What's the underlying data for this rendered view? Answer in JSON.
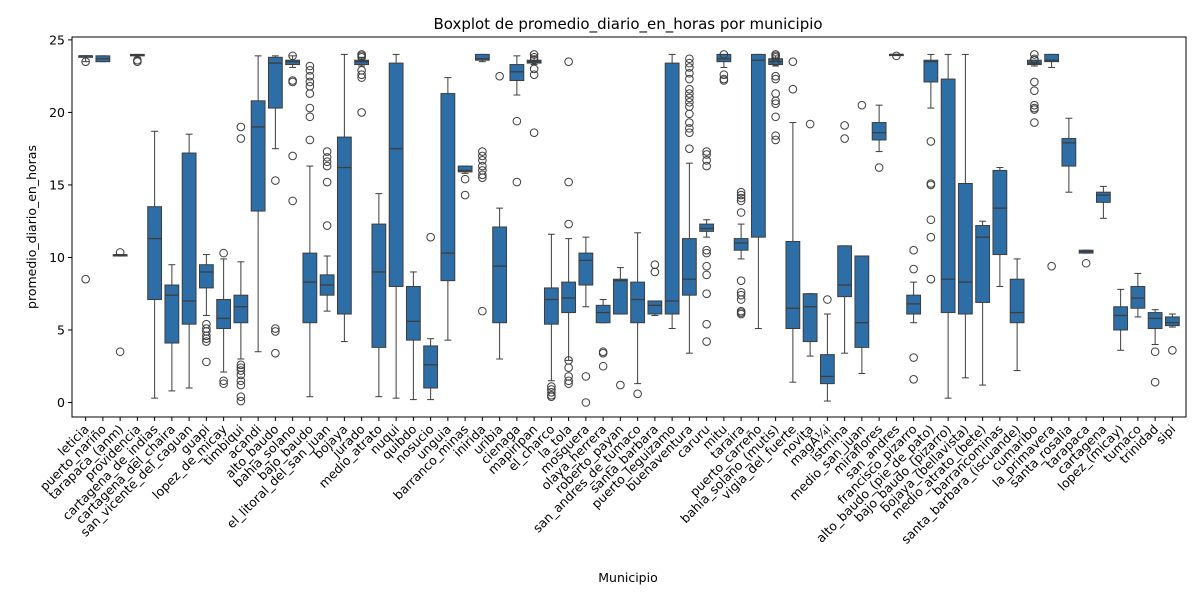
{
  "chart_data": {
    "type": "boxplot",
    "title": "Boxplot de promedio_diario_en_horas por municipio",
    "xlabel": "Municipio",
    "ylabel": "promedio_diario_en_horas",
    "ylim": [
      -1,
      25.2
    ],
    "yticks": [
      0,
      5,
      10,
      15,
      20,
      25
    ],
    "color": "#2e6ea6",
    "grid": false,
    "categories": [
      "leticia",
      "puerto_nariño",
      "tarapaca_(anm)",
      "providencia",
      "cartagena_de_indias",
      "cartagena_del_chaira",
      "san_vicente_del_caguan",
      "guapi",
      "lopez_de_micay",
      "timbiqui",
      "acandi",
      "alto_baudo",
      "bahia_solano",
      "bajo_baudo",
      "el_litoral_del_san_juan",
      "bojaya",
      "jurado",
      "medio_atrato",
      "nuqui",
      "quibdo",
      "nosucio",
      "unguia",
      "barranco_minas",
      "inirida",
      "uribia",
      "cienaga",
      "mapiripan",
      "el_charco",
      "la_tola",
      "mosquera",
      "olaya_herrera",
      "roberto_payan",
      "san_andres_de_tumaco",
      "santa_barbara",
      "puerto_leguizamo",
      "buenaventura",
      "caruru",
      "mitu",
      "taraira",
      "puerto_carreño",
      "bahia_solano_(mutis)",
      "vigia_del_fuerte",
      "novita",
      "magÃ¼i",
      "istmina",
      "medio_san_juan",
      "miraflores",
      "san_andres",
      "francisco_pizarro",
      "alto_baudo_(pie_de_pato)",
      "bajo_baudo_(pizarro)",
      "bojaya_(bellavista)",
      "medio_atrato_(bete)",
      "barrancominas",
      "santa_barbara_(iscuande)",
      "cumaribo",
      "la_primavera",
      "santa_rosalia",
      "tarapaca",
      "cartagena",
      "lopez_(micay)",
      "tumaco",
      "trinidad",
      "sipi"
    ],
    "boxes": [
      {
        "min": 23.5,
        "q1": 23.8,
        "median": 23.9,
        "q3": 23.9,
        "max": 23.9,
        "outliers": [
          8.5,
          23.5
        ]
      },
      {
        "min": 23.5,
        "q1": 23.5,
        "median": 23.7,
        "q3": 23.9,
        "max": 23.9,
        "outliers": []
      },
      {
        "min": 10.1,
        "q1": 10.1,
        "median": 10.15,
        "q3": 10.2,
        "max": 10.2,
        "outliers": [
          3.5,
          10.35
        ]
      },
      {
        "min": 23.8,
        "q1": 23.9,
        "median": 23.95,
        "q3": 24.0,
        "max": 24.0,
        "outliers": [
          23.5,
          23.6
        ]
      },
      {
        "min": 0.3,
        "q1": 7.1,
        "median": 11.3,
        "q3": 13.5,
        "max": 18.7,
        "outliers": []
      },
      {
        "min": 0.8,
        "q1": 4.1,
        "median": 7.4,
        "q3": 8.1,
        "max": 9.5,
        "outliers": []
      },
      {
        "min": 1.0,
        "q1": 5.4,
        "median": 7.0,
        "q3": 17.2,
        "max": 18.5,
        "outliers": []
      },
      {
        "min": 6.0,
        "q1": 7.9,
        "median": 9.0,
        "q3": 9.5,
        "max": 10.2,
        "outliers": [
          5.4,
          5.1,
          4.9,
          4.6,
          4.4,
          4.2,
          2.8
        ]
      },
      {
        "min": 2.1,
        "q1": 5.1,
        "median": 5.8,
        "q3": 7.1,
        "max": 9.9,
        "outliers": [
          10.3,
          1.5,
          1.3
        ]
      },
      {
        "min": 3.0,
        "q1": 5.5,
        "median": 6.6,
        "q3": 7.4,
        "max": 9.7,
        "outliers": [
          19.0,
          18.2,
          2.6,
          2.4,
          2.2,
          1.9,
          1.5,
          1.2,
          0.4,
          0.1
        ]
      },
      {
        "min": 3.5,
        "q1": 13.2,
        "median": 19.0,
        "q3": 20.8,
        "max": 23.9,
        "outliers": []
      },
      {
        "min": 17.5,
        "q1": 20.3,
        "median": 23.4,
        "q3": 23.8,
        "max": 23.9,
        "outliers": [
          15.3,
          5.1,
          4.9,
          3.4
        ]
      },
      {
        "min": 23.1,
        "q1": 23.3,
        "median": 23.5,
        "q3": 23.6,
        "max": 23.9,
        "outliers": [
          23.9,
          22.2,
          22.1,
          17.0,
          13.9
        ]
      },
      {
        "min": 0.4,
        "q1": 5.5,
        "median": 8.3,
        "q3": 10.3,
        "max": 16.3,
        "outliers": [
          23.2,
          22.9,
          22.5,
          22.1,
          21.8,
          21.3,
          20.3,
          19.7,
          18.1
        ]
      },
      {
        "min": 6.3,
        "q1": 7.4,
        "median": 8.1,
        "q3": 8.8,
        "max": 10.1,
        "outliers": [
          17.3,
          16.9,
          16.6,
          16.3,
          15.2,
          12.2
        ]
      },
      {
        "min": 4.2,
        "q1": 6.1,
        "median": 16.2,
        "q3": 18.3,
        "max": 24.0,
        "outliers": []
      },
      {
        "min": 23.2,
        "q1": 23.3,
        "median": 23.5,
        "q3": 23.6,
        "max": 23.8,
        "outliers": [
          24.0,
          23.9,
          23.8,
          22.9,
          22.6,
          22.4,
          20.0
        ]
      },
      {
        "min": 0.4,
        "q1": 3.8,
        "median": 9.0,
        "q3": 12.3,
        "max": 14.4,
        "outliers": []
      },
      {
        "min": 0.3,
        "q1": 8.0,
        "median": 17.5,
        "q3": 23.4,
        "max": 24.0,
        "outliers": []
      },
      {
        "min": 0.2,
        "q1": 4.3,
        "median": 5.6,
        "q3": 8.0,
        "max": 9.0,
        "outliers": []
      },
      {
        "min": 0.2,
        "q1": 1.0,
        "median": 2.6,
        "q3": 3.9,
        "max": 4.4,
        "outliers": [
          11.4
        ]
      },
      {
        "min": 4.3,
        "q1": 8.4,
        "median": 10.3,
        "q3": 21.3,
        "max": 22.4,
        "outliers": []
      },
      {
        "min": 15.8,
        "q1": 15.9,
        "median": 16.0,
        "q3": 16.3,
        "max": 16.3,
        "outliers": [
          15.4,
          14.3
        ]
      },
      {
        "min": 23.5,
        "q1": 23.6,
        "median": 23.7,
        "q3": 24.0,
        "max": 24.0,
        "outliers": [
          17.3,
          17.0,
          16.7,
          16.3,
          16.0,
          15.7,
          15.5,
          6.3
        ]
      },
      {
        "min": 3.0,
        "q1": 5.5,
        "median": 9.4,
        "q3": 12.1,
        "max": 13.4,
        "outliers": [
          22.5
        ]
      },
      {
        "min": 21.2,
        "q1": 22.2,
        "median": 22.8,
        "q3": 23.3,
        "max": 23.9,
        "outliers": [
          19.4,
          15.2
        ]
      },
      {
        "min": 23.3,
        "q1": 23.4,
        "median": 23.5,
        "q3": 23.6,
        "max": 23.9,
        "outliers": [
          24.0,
          23.8,
          23.6,
          23.0,
          22.6,
          18.6
        ]
      },
      {
        "min": 1.5,
        "q1": 5.4,
        "median": 7.1,
        "q3": 7.9,
        "max": 11.6,
        "outliers": [
          1.1,
          0.9,
          0.7,
          0.5,
          0.4
        ]
      },
      {
        "min": 2.9,
        "q1": 6.2,
        "median": 7.2,
        "q3": 8.3,
        "max": 11.3,
        "outliers": [
          23.5,
          15.2,
          12.3,
          2.9,
          2.4,
          1.8,
          1.5,
          1.3
        ]
      },
      {
        "min": 6.6,
        "q1": 8.1,
        "median": 9.8,
        "q3": 10.3,
        "max": 11.4,
        "outliers": [
          1.8,
          0.0
        ]
      },
      {
        "min": 5.5,
        "q1": 5.5,
        "median": 6.2,
        "q3": 6.7,
        "max": 7.1,
        "outliers": [
          3.5,
          3.4,
          2.5
        ]
      },
      {
        "min": 6.1,
        "q1": 6.1,
        "median": 8.4,
        "q3": 8.5,
        "max": 9.3,
        "outliers": [
          1.2
        ]
      },
      {
        "min": 1.3,
        "q1": 5.5,
        "median": 7.1,
        "q3": 8.3,
        "max": 11.7,
        "outliers": [
          0.6
        ]
      },
      {
        "min": 6.0,
        "q1": 6.1,
        "median": 6.7,
        "q3": 7.0,
        "max": 7.0,
        "outliers": [
          9.5,
          9.0
        ]
      },
      {
        "min": 5.1,
        "q1": 6.1,
        "median": 7.0,
        "q3": 23.4,
        "max": 24.0,
        "outliers": []
      },
      {
        "min": 3.4,
        "q1": 7.4,
        "median": 8.5,
        "q3": 11.3,
        "max": 16.5,
        "outliers": [
          23.7,
          23.4,
          23.1,
          22.7,
          22.3,
          21.6,
          21.3,
          21.0,
          20.7,
          20.4,
          19.9,
          19.3,
          18.9,
          18.6,
          17.5
        ]
      },
      {
        "min": 11.4,
        "q1": 11.8,
        "median": 12.0,
        "q3": 12.3,
        "max": 12.6,
        "outliers": [
          17.3,
          17.1,
          16.7,
          16.3,
          10.5,
          10.3,
          9.4,
          8.8,
          7.5,
          5.4,
          4.2
        ]
      },
      {
        "min": 23.1,
        "q1": 23.5,
        "median": 23.7,
        "q3": 24.0,
        "max": 24.0,
        "outliers": [
          24.0,
          22.6,
          22.3,
          22.2
        ]
      },
      {
        "min": 9.9,
        "q1": 10.5,
        "median": 11.0,
        "q3": 11.3,
        "max": 12.3,
        "outliers": [
          14.5,
          14.3,
          14.1,
          13.9,
          13.1,
          8.4,
          7.6,
          7.4,
          6.3,
          6.2,
          6.1,
          7.1
        ]
      },
      {
        "min": 5.1,
        "q1": 11.4,
        "median": 23.6,
        "q3": 24.0,
        "max": 24.0,
        "outliers": []
      },
      {
        "min": 23.2,
        "q1": 23.3,
        "median": 23.5,
        "q3": 23.7,
        "max": 23.9,
        "outliers": [
          24.0,
          23.9,
          23.8,
          23.5,
          22.5,
          22.3,
          21.3,
          20.8,
          20.6,
          19.7,
          18.4,
          18.1
        ]
      },
      {
        "min": 1.4,
        "q1": 5.1,
        "median": 6.5,
        "q3": 11.1,
        "max": 19.3,
        "outliers": [
          23.5,
          21.6
        ]
      },
      {
        "min": 3.2,
        "q1": 4.2,
        "median": 6.6,
        "q3": 7.5,
        "max": 7.5,
        "outliers": [
          19.2
        ]
      },
      {
        "min": 0.1,
        "q1": 1.3,
        "median": 1.8,
        "q3": 3.3,
        "max": 6.1,
        "outliers": [
          7.1
        ]
      },
      {
        "min": 3.4,
        "q1": 7.3,
        "median": 8.1,
        "q3": 10.8,
        "max": 10.8,
        "outliers": [
          19.1,
          18.2
        ]
      },
      {
        "min": 2.0,
        "q1": 3.8,
        "median": 5.5,
        "q3": 10.1,
        "max": 10.1,
        "outliers": [
          20.5
        ]
      },
      {
        "min": 17.3,
        "q1": 18.1,
        "median": 18.6,
        "q3": 19.3,
        "max": 20.5,
        "outliers": [
          16.2
        ]
      },
      {
        "min": 24.0,
        "q1": 24.0,
        "median": 24.0,
        "q3": 24.0,
        "max": 24.0,
        "outliers": [
          23.9
        ]
      },
      {
        "min": 5.5,
        "q1": 6.1,
        "median": 6.8,
        "q3": 7.4,
        "max": 8.3,
        "outliers": [
          10.5,
          9.2,
          3.1,
          1.6
        ]
      },
      {
        "min": 20.3,
        "q1": 22.1,
        "median": 23.5,
        "q3": 23.6,
        "max": 24.0,
        "outliers": [
          18.0,
          15.1,
          15.0,
          12.6,
          11.4,
          8.5
        ]
      },
      {
        "min": 0.3,
        "q1": 6.2,
        "median": 8.5,
        "q3": 22.3,
        "max": 24.0,
        "outliers": []
      },
      {
        "min": 1.7,
        "q1": 6.1,
        "median": 8.3,
        "q3": 15.1,
        "max": 24.0,
        "outliers": []
      },
      {
        "min": 1.2,
        "q1": 6.9,
        "median": 11.4,
        "q3": 12.2,
        "max": 12.5,
        "outliers": []
      },
      {
        "min": 8.0,
        "q1": 10.2,
        "median": 13.4,
        "q3": 16.0,
        "max": 16.2,
        "outliers": []
      },
      {
        "min": 2.2,
        "q1": 5.5,
        "median": 6.2,
        "q3": 8.5,
        "max": 9.9,
        "outliers": []
      },
      {
        "min": 23.2,
        "q1": 23.3,
        "median": 23.4,
        "q3": 23.6,
        "max": 23.6,
        "outliers": [
          24.0,
          23.7,
          23.6,
          22.1,
          21.5,
          20.5,
          20.3,
          20.2,
          19.3
        ]
      },
      {
        "min": 23.1,
        "q1": 23.5,
        "median": 23.6,
        "q3": 24.0,
        "max": 24.0,
        "outliers": [
          9.4
        ]
      },
      {
        "min": 14.5,
        "q1": 16.3,
        "median": 17.9,
        "q3": 18.2,
        "max": 19.6,
        "outliers": []
      },
      {
        "min": 10.3,
        "q1": 10.3,
        "median": 10.4,
        "q3": 10.5,
        "max": 10.5,
        "outliers": [
          9.6
        ]
      },
      {
        "min": 12.7,
        "q1": 13.8,
        "median": 14.3,
        "q3": 14.5,
        "max": 14.9,
        "outliers": []
      },
      {
        "min": 3.6,
        "q1": 5.0,
        "median": 6.0,
        "q3": 6.6,
        "max": 7.8,
        "outliers": []
      },
      {
        "min": 5.9,
        "q1": 6.5,
        "median": 7.2,
        "q3": 8.0,
        "max": 8.9,
        "outliers": []
      },
      {
        "min": 4.0,
        "q1": 5.1,
        "median": 5.8,
        "q3": 6.2,
        "max": 6.4,
        "outliers": [
          3.5,
          1.4
        ]
      },
      {
        "min": 5.2,
        "q1": 5.3,
        "median": 5.5,
        "q3": 5.9,
        "max": 6.1,
        "outliers": [
          3.6
        ]
      }
    ]
  }
}
